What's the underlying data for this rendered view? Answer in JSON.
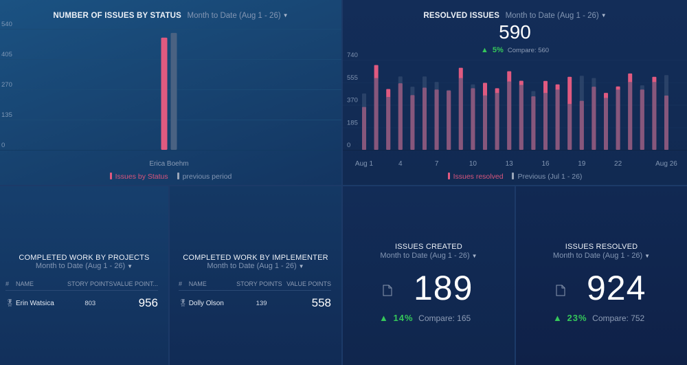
{
  "issues_by_status": {
    "title": "NUMBER OF ISSUES BY STATUS",
    "period": "Month to Date (Aug 1 - 26)"
  },
  "resolved_issues": {
    "title": "RESOLVED ISSUES",
    "period": "Month to Date (Aug 1 - 26)",
    "value": "590",
    "delta_pct": "5%",
    "compare": "Compare: 560"
  },
  "projects": {
    "title": "COMPLETED WORK BY PROJECTS",
    "period": "Month to Date (Aug 1 - 26)",
    "columns": [
      "#",
      "NAME",
      "STORY POINTS",
      "VALUE POINT..."
    ],
    "rows": [
      {
        "icon": "medal-icon",
        "name": "Erin Watsica",
        "story_points": "803",
        "value_points": "956"
      }
    ]
  },
  "implementer": {
    "title": "COMPLETED WORK BY IMPLEMENTER",
    "period": "Month to Date (Aug 1 - 26)",
    "columns": [
      "#",
      "NAME",
      "STORY POINTS",
      "VALUE POINTS"
    ],
    "rows": [
      {
        "icon": "medal-icon",
        "name": "Dolly Olson",
        "story_points": "139",
        "value_points": "558"
      }
    ]
  },
  "issues_created": {
    "title": "ISSUES CREATED",
    "period": "Month to Date (Aug 1 - 26)",
    "value": "189",
    "delta_pct": "14%",
    "compare": "Compare: 165",
    "icon": "document-icon"
  },
  "issues_resolved": {
    "title": "ISSUES RESOLVED",
    "period": "Month to Date (Aug 1 - 26)",
    "value": "924",
    "delta_pct": "23%",
    "compare": "Compare: 752",
    "icon": "document-icon"
  },
  "colors": {
    "current": "#e05a80",
    "previous": "#4a6282",
    "overlap": "#a94568",
    "positive": "#35c75a"
  },
  "chart_data": [
    {
      "type": "bar",
      "title": "NUMBER OF ISSUES BY STATUS",
      "categories": [
        "Erica Boehm"
      ],
      "series": [
        {
          "name": "Issues by Status",
          "values": [
            501
          ]
        },
        {
          "name": "previous period",
          "values": [
            522
          ]
        }
      ],
      "y_ticks": [
        0,
        135,
        270,
        405,
        540
      ],
      "ylim": [
        0,
        540
      ],
      "grid": true,
      "legend": "bottom-center"
    },
    {
      "type": "bar",
      "title": "RESOLVED ISSUES",
      "categories": [
        "Aug 1",
        "2",
        "3",
        "4",
        "5",
        "6",
        "7",
        "8",
        "9",
        "10",
        "11",
        "12",
        "13",
        "14",
        "15",
        "16",
        "17",
        "18",
        "19",
        "20",
        "21",
        "22",
        "23",
        "24",
        "25",
        "Aug 26"
      ],
      "x_tick_labels": [
        "Aug 1",
        "4",
        "7",
        "10",
        "13",
        "16",
        "19",
        "22",
        "Aug 26"
      ],
      "x_tick_days": [
        1,
        4,
        7,
        10,
        13,
        16,
        19,
        22,
        26
      ],
      "series": [
        {
          "name": "Issues resolved",
          "values": [
            352,
            697,
            500,
            547,
            450,
            511,
            496,
            487,
            674,
            506,
            551,
            506,
            646,
            568,
            440,
            566,
            538,
            600,
            403,
            519,
            468,
            521,
            628,
            496,
            600,
            446
          ]
        },
        {
          "name": "Previous (Jul 1 - 26)",
          "values": [
            463,
            590,
            435,
            603,
            519,
            603,
            558,
            493,
            590,
            538,
            448,
            468,
            562,
            534,
            483,
            468,
            496,
            378,
            609,
            590,
            427,
            496,
            558,
            530,
            558,
            614
          ]
        }
      ],
      "y_ticks": [
        0,
        185,
        370,
        555,
        740
      ],
      "ylim": [
        0,
        740
      ],
      "grid": true,
      "legend": "bottom-center"
    }
  ]
}
